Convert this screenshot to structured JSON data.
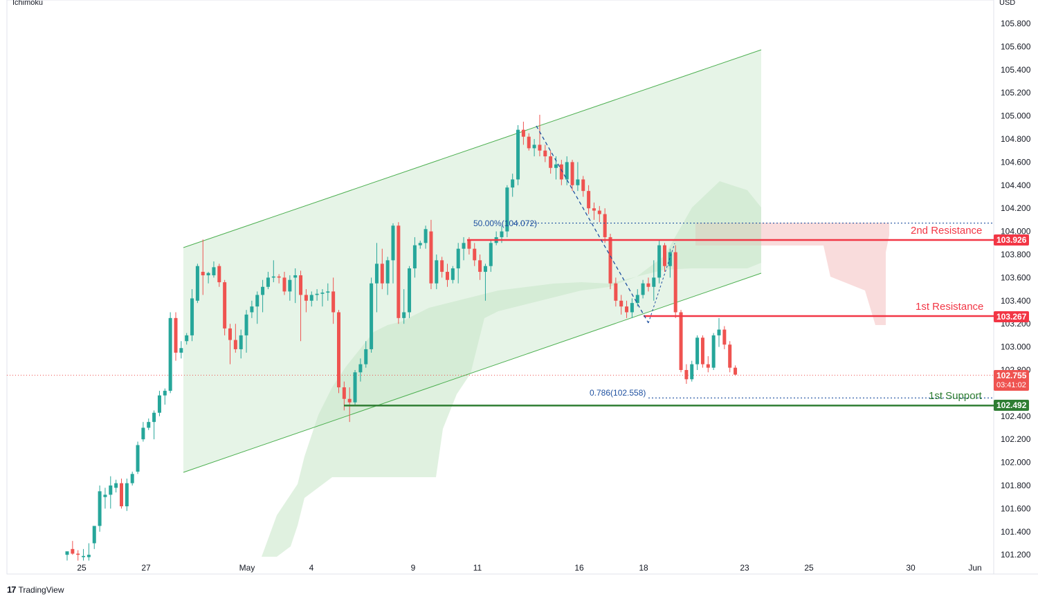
{
  "header": {
    "indicator": "Ichimoku",
    "currency": "USD"
  },
  "footer": {
    "brand": "TradingView",
    "logo": "17"
  },
  "colors": {
    "up": "#26a69a",
    "down": "#ef5350",
    "resistance": "#f23645",
    "support": "#2e7d32",
    "fib": "#1e50a0"
  },
  "annotations": {
    "fib_50": "50.00%(104.072)",
    "fib_786": "0.786(102.558)",
    "res2_label": "2nd Resistance",
    "res1_label": "1st Resistance",
    "sup1_label": "1st Support"
  },
  "price_tags": {
    "res2": "103.926",
    "res1": "103.267",
    "current": "102.755",
    "countdown": "03:41:02",
    "sup1": "102.492"
  },
  "chart_data": {
    "type": "candlestick",
    "y_axis": {
      "ylim": [
        101.1,
        105.95
      ],
      "ticks": [
        "105.800",
        "105.600",
        "105.400",
        "105.200",
        "105.000",
        "104.800",
        "104.600",
        "104.400",
        "104.200",
        "104.000",
        "103.800",
        "103.600",
        "103.400",
        "103.200",
        "103.000",
        "102.800",
        "102.400",
        "102.200",
        "102.000",
        "101.800",
        "101.600",
        "101.400",
        "101.200"
      ]
    },
    "x_axis": {
      "ticks": [
        "25",
        "27",
        "May",
        "4",
        "9",
        "11",
        "16",
        "18",
        "23",
        "25",
        "30",
        "Jun"
      ]
    },
    "levels": {
      "resistance_2": 103.926,
      "resistance_1": 103.267,
      "support_1": 102.492,
      "fib_50": 104.072,
      "fib_786": 102.558,
      "current": 102.755
    },
    "candles": [
      {
        "o": 101.2,
        "h": 101.22,
        "l": 101.15,
        "c": 101.23
      },
      {
        "o": 101.25,
        "h": 101.32,
        "l": 101.2,
        "c": 101.21
      },
      {
        "o": 101.21,
        "h": 101.24,
        "l": 101.15,
        "c": 101.2
      },
      {
        "o": 101.18,
        "h": 101.25,
        "l": 101.15,
        "c": 101.19
      },
      {
        "o": 101.18,
        "h": 101.3,
        "l": 101.15,
        "c": 101.2
      },
      {
        "o": 101.3,
        "h": 101.45,
        "l": 101.25,
        "c": 101.45
      },
      {
        "o": 101.45,
        "h": 101.8,
        "l": 101.4,
        "c": 101.75
      },
      {
        "o": 101.7,
        "h": 101.78,
        "l": 101.6,
        "c": 101.72
      },
      {
        "o": 101.72,
        "h": 101.88,
        "l": 101.6,
        "c": 101.8
      },
      {
        "o": 101.78,
        "h": 101.85,
        "l": 101.74,
        "c": 101.82
      },
      {
        "o": 101.82,
        "h": 101.86,
        "l": 101.6,
        "c": 101.62
      },
      {
        "o": 101.62,
        "h": 101.86,
        "l": 101.58,
        "c": 101.82
      },
      {
        "o": 101.82,
        "h": 101.92,
        "l": 101.8,
        "c": 101.9
      },
      {
        "o": 101.92,
        "h": 102.18,
        "l": 101.9,
        "c": 102.15
      },
      {
        "o": 102.2,
        "h": 102.35,
        "l": 102.18,
        "c": 102.3
      },
      {
        "o": 102.3,
        "h": 102.38,
        "l": 102.28,
        "c": 102.35
      },
      {
        "o": 102.35,
        "h": 102.45,
        "l": 102.2,
        "c": 102.43
      },
      {
        "o": 102.43,
        "h": 102.62,
        "l": 102.4,
        "c": 102.58
      },
      {
        "o": 102.58,
        "h": 102.64,
        "l": 102.5,
        "c": 102.62
      },
      {
        "o": 102.62,
        "h": 103.3,
        "l": 102.6,
        "c": 103.25
      },
      {
        "o": 103.25,
        "h": 103.3,
        "l": 102.88,
        "c": 102.95
      },
      {
        "o": 102.95,
        "h": 103.05,
        "l": 102.9,
        "c": 102.99
      },
      {
        "o": 103.05,
        "h": 103.12,
        "l": 103.02,
        "c": 103.1
      },
      {
        "o": 103.1,
        "h": 103.5,
        "l": 103.05,
        "c": 103.42
      },
      {
        "o": 103.4,
        "h": 103.72,
        "l": 103.38,
        "c": 103.7
      },
      {
        "o": 103.65,
        "h": 103.93,
        "l": 103.45,
        "c": 103.62
      },
      {
        "o": 103.62,
        "h": 103.65,
        "l": 103.55,
        "c": 103.64
      },
      {
        "o": 103.62,
        "h": 103.74,
        "l": 103.6,
        "c": 103.69
      },
      {
        "o": 103.7,
        "h": 103.72,
        "l": 103.52,
        "c": 103.56
      },
      {
        "o": 103.56,
        "h": 103.58,
        "l": 103.1,
        "c": 103.16
      },
      {
        "o": 103.16,
        "h": 103.2,
        "l": 102.85,
        "c": 103.06
      },
      {
        "o": 103.06,
        "h": 103.2,
        "l": 102.95,
        "c": 102.98
      },
      {
        "o": 102.98,
        "h": 103.15,
        "l": 102.9,
        "c": 103.1
      },
      {
        "o": 103.1,
        "h": 103.32,
        "l": 102.95,
        "c": 103.28
      },
      {
        "o": 103.3,
        "h": 103.4,
        "l": 103.25,
        "c": 103.35
      },
      {
        "o": 103.35,
        "h": 103.48,
        "l": 103.2,
        "c": 103.45
      },
      {
        "o": 103.45,
        "h": 103.58,
        "l": 103.3,
        "c": 103.52
      },
      {
        "o": 103.52,
        "h": 103.65,
        "l": 103.5,
        "c": 103.6
      },
      {
        "o": 103.6,
        "h": 103.75,
        "l": 103.56,
        "c": 103.61
      },
      {
        "o": 103.61,
        "h": 103.63,
        "l": 103.55,
        "c": 103.6
      },
      {
        "o": 103.6,
        "h": 103.65,
        "l": 103.45,
        "c": 103.48
      },
      {
        "o": 103.48,
        "h": 103.62,
        "l": 103.4,
        "c": 103.58
      },
      {
        "o": 103.6,
        "h": 103.68,
        "l": 103.38,
        "c": 103.62
      },
      {
        "o": 103.62,
        "h": 103.66,
        "l": 103.05,
        "c": 103.45
      },
      {
        "o": 103.45,
        "h": 103.5,
        "l": 103.3,
        "c": 103.4
      },
      {
        "o": 103.4,
        "h": 103.48,
        "l": 103.35,
        "c": 103.45
      },
      {
        "o": 103.45,
        "h": 103.5,
        "l": 103.4,
        "c": 103.46
      },
      {
        "o": 103.46,
        "h": 103.5,
        "l": 103.35,
        "c": 103.47
      },
      {
        "o": 103.47,
        "h": 103.55,
        "l": 103.4,
        "c": 103.48
      },
      {
        "o": 103.48,
        "h": 103.6,
        "l": 103.2,
        "c": 103.3
      },
      {
        "o": 103.3,
        "h": 103.32,
        "l": 102.6,
        "c": 102.65
      },
      {
        "o": 102.65,
        "h": 102.7,
        "l": 102.45,
        "c": 102.55
      },
      {
        "o": 102.55,
        "h": 102.65,
        "l": 102.35,
        "c": 102.52
      },
      {
        "o": 102.52,
        "h": 102.8,
        "l": 102.5,
        "c": 102.78
      },
      {
        "o": 102.78,
        "h": 102.9,
        "l": 102.7,
        "c": 102.85
      },
      {
        "o": 102.85,
        "h": 103.05,
        "l": 102.82,
        "c": 102.98
      },
      {
        "o": 102.98,
        "h": 103.6,
        "l": 102.95,
        "c": 103.55
      },
      {
        "o": 103.55,
        "h": 103.9,
        "l": 103.3,
        "c": 103.72
      },
      {
        "o": 103.72,
        "h": 103.85,
        "l": 103.5,
        "c": 103.55
      },
      {
        "o": 103.55,
        "h": 103.78,
        "l": 103.45,
        "c": 103.75
      },
      {
        "o": 103.75,
        "h": 104.07,
        "l": 103.55,
        "c": 104.05
      },
      {
        "o": 104.05,
        "h": 104.08,
        "l": 103.2,
        "c": 103.25
      },
      {
        "o": 103.25,
        "h": 103.5,
        "l": 103.2,
        "c": 103.3
      },
      {
        "o": 103.3,
        "h": 103.7,
        "l": 103.25,
        "c": 103.68
      },
      {
        "o": 103.68,
        "h": 103.95,
        "l": 103.6,
        "c": 103.88
      },
      {
        "o": 103.88,
        "h": 103.92,
        "l": 103.85,
        "c": 103.9
      },
      {
        "o": 103.9,
        "h": 104.05,
        "l": 103.85,
        "c": 104.02
      },
      {
        "o": 104.0,
        "h": 104.1,
        "l": 103.5,
        "c": 103.55
      },
      {
        "o": 103.55,
        "h": 103.8,
        "l": 103.5,
        "c": 103.75
      },
      {
        "o": 103.75,
        "h": 103.78,
        "l": 103.6,
        "c": 103.65
      },
      {
        "o": 103.65,
        "h": 103.72,
        "l": 103.52,
        "c": 103.58
      },
      {
        "o": 103.58,
        "h": 103.7,
        "l": 103.55,
        "c": 103.68
      },
      {
        "o": 103.68,
        "h": 103.9,
        "l": 103.55,
        "c": 103.85
      },
      {
        "o": 103.85,
        "h": 103.95,
        "l": 103.75,
        "c": 103.9
      },
      {
        "o": 103.92,
        "h": 103.95,
        "l": 103.8,
        "c": 103.85
      },
      {
        "o": 103.85,
        "h": 103.9,
        "l": 103.7,
        "c": 103.75
      },
      {
        "o": 103.75,
        "h": 103.8,
        "l": 103.58,
        "c": 103.65
      },
      {
        "o": 103.65,
        "h": 103.72,
        "l": 103.4,
        "c": 103.7
      },
      {
        "o": 103.7,
        "h": 103.92,
        "l": 103.65,
        "c": 103.9
      },
      {
        "o": 103.9,
        "h": 104.0,
        "l": 103.88,
        "c": 103.95
      },
      {
        "o": 103.95,
        "h": 104.05,
        "l": 103.9,
        "c": 104.0
      },
      {
        "o": 104.0,
        "h": 104.4,
        "l": 103.95,
        "c": 104.38
      },
      {
        "o": 104.38,
        "h": 104.5,
        "l": 104.3,
        "c": 104.45
      },
      {
        "o": 104.45,
        "h": 104.92,
        "l": 104.4,
        "c": 104.88
      },
      {
        "o": 104.88,
        "h": 104.95,
        "l": 104.75,
        "c": 104.82
      },
      {
        "o": 104.82,
        "h": 104.85,
        "l": 104.7,
        "c": 104.72
      },
      {
        "o": 104.72,
        "h": 104.8,
        "l": 104.65,
        "c": 104.75
      },
      {
        "o": 104.75,
        "h": 105.01,
        "l": 104.65,
        "c": 104.7
      },
      {
        "o": 104.7,
        "h": 104.75,
        "l": 104.6,
        "c": 104.65
      },
      {
        "o": 104.65,
        "h": 104.7,
        "l": 104.5,
        "c": 104.55
      },
      {
        "o": 104.55,
        "h": 104.65,
        "l": 104.45,
        "c": 104.58
      },
      {
        "o": 104.58,
        "h": 104.62,
        "l": 104.4,
        "c": 104.45
      },
      {
        "o": 104.45,
        "h": 104.65,
        "l": 104.4,
        "c": 104.6
      },
      {
        "o": 104.6,
        "h": 104.62,
        "l": 104.35,
        "c": 104.4
      },
      {
        "o": 104.4,
        "h": 104.6,
        "l": 104.35,
        "c": 104.45
      },
      {
        "o": 104.45,
        "h": 104.48,
        "l": 104.3,
        "c": 104.35
      },
      {
        "o": 104.35,
        "h": 104.4,
        "l": 104.15,
        "c": 104.2
      },
      {
        "o": 104.2,
        "h": 104.25,
        "l": 104.1,
        "c": 104.18
      },
      {
        "o": 104.18,
        "h": 104.22,
        "l": 104.08,
        "c": 104.15
      },
      {
        "o": 104.15,
        "h": 104.2,
        "l": 103.9,
        "c": 103.95
      },
      {
        "o": 103.95,
        "h": 103.98,
        "l": 103.5,
        "c": 103.55
      },
      {
        "o": 103.55,
        "h": 103.6,
        "l": 103.35,
        "c": 103.4
      },
      {
        "o": 103.4,
        "h": 103.45,
        "l": 103.28,
        "c": 103.35
      },
      {
        "o": 103.35,
        "h": 103.4,
        "l": 103.25,
        "c": 103.3
      },
      {
        "o": 103.3,
        "h": 103.42,
        "l": 103.25,
        "c": 103.38
      },
      {
        "o": 103.38,
        "h": 103.5,
        "l": 103.35,
        "c": 103.45
      },
      {
        "o": 103.45,
        "h": 103.58,
        "l": 103.42,
        "c": 103.55
      },
      {
        "o": 103.55,
        "h": 103.6,
        "l": 103.48,
        "c": 103.52
      },
      {
        "o": 103.52,
        "h": 103.75,
        "l": 103.4,
        "c": 103.6
      },
      {
        "o": 103.6,
        "h": 103.92,
        "l": 103.55,
        "c": 103.88
      },
      {
        "o": 103.88,
        "h": 103.9,
        "l": 103.65,
        "c": 103.7
      },
      {
        "o": 103.7,
        "h": 103.85,
        "l": 103.6,
        "c": 103.82
      },
      {
        "o": 103.82,
        "h": 103.88,
        "l": 103.25,
        "c": 103.3
      },
      {
        "o": 103.3,
        "h": 103.32,
        "l": 102.78,
        "c": 102.8
      },
      {
        "o": 102.8,
        "h": 102.85,
        "l": 102.68,
        "c": 102.72
      },
      {
        "o": 102.72,
        "h": 102.88,
        "l": 102.7,
        "c": 102.85
      },
      {
        "o": 102.85,
        "h": 103.1,
        "l": 102.8,
        "c": 103.08
      },
      {
        "o": 103.08,
        "h": 103.1,
        "l": 102.82,
        "c": 102.85
      },
      {
        "o": 102.85,
        "h": 102.92,
        "l": 102.78,
        "c": 102.82
      },
      {
        "o": 102.82,
        "h": 103.12,
        "l": 102.8,
        "c": 103.1
      },
      {
        "o": 103.1,
        "h": 103.25,
        "l": 103.0,
        "c": 103.15
      },
      {
        "o": 103.15,
        "h": 103.18,
        "l": 102.98,
        "c": 103.02
      },
      {
        "o": 103.02,
        "h": 103.05,
        "l": 102.78,
        "c": 102.82
      },
      {
        "o": 102.82,
        "h": 102.84,
        "l": 102.75,
        "c": 102.76
      }
    ]
  }
}
